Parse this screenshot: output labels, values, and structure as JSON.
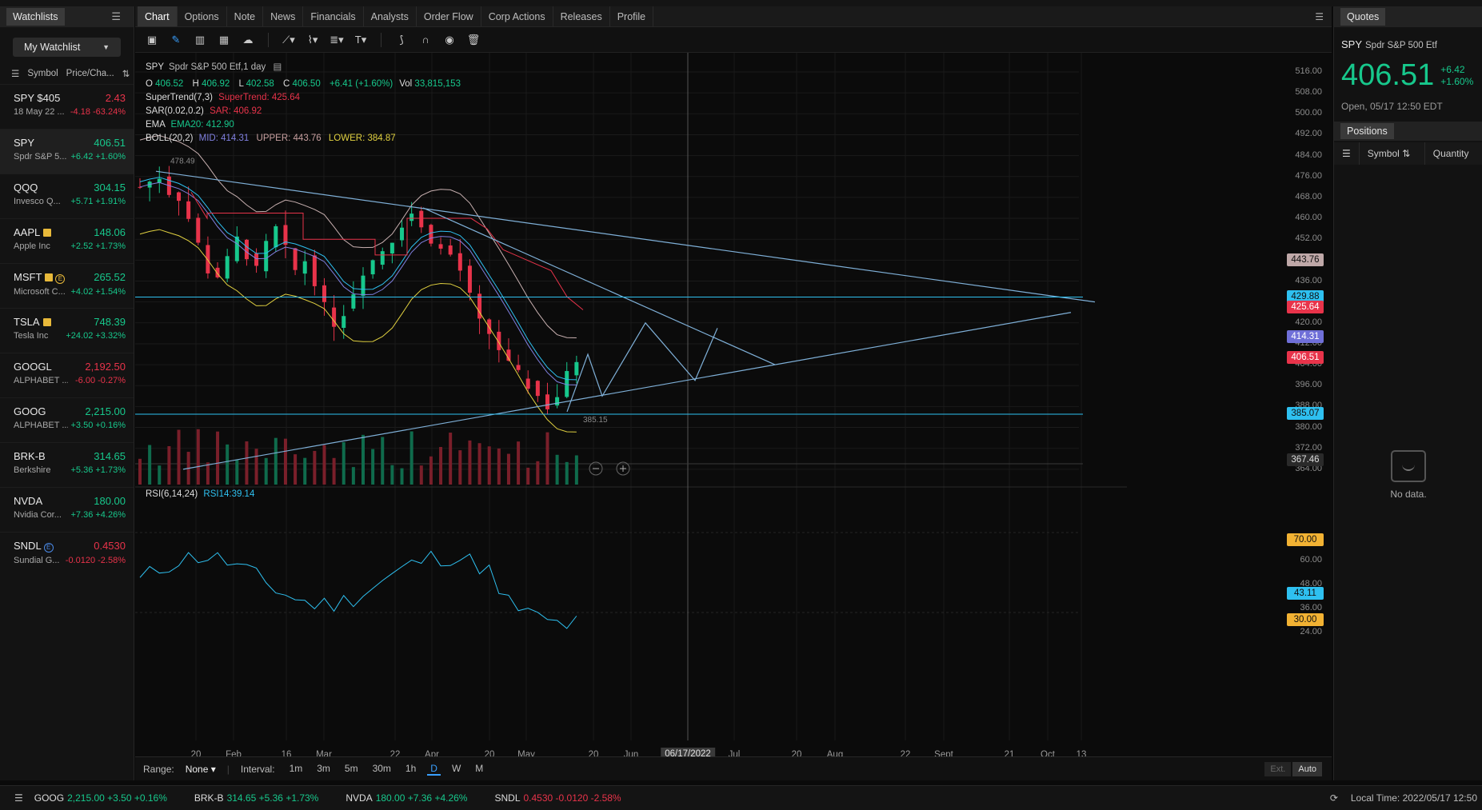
{
  "left_panel": {
    "tab_label": "Watchlists",
    "watchlist_name": "My Watchlist",
    "col_symbol": "Symbol",
    "col_price": "Price/Cha...",
    "items": [
      {
        "symbol": "SPY $405",
        "price": "2.43",
        "name": "18 May 22 ...",
        "change": "-4.18 -63.24%",
        "dir": "down",
        "badge": ""
      },
      {
        "symbol": "SPY",
        "price": "406.51",
        "name": "Spdr S&P 5...",
        "change": "+6.42 +1.60%",
        "dir": "up",
        "badge": ""
      },
      {
        "symbol": "QQQ",
        "price": "304.15",
        "name": "Invesco Q...",
        "change": "+5.71 +1.91%",
        "dir": "up",
        "badge": ""
      },
      {
        "symbol": "AAPL",
        "price": "148.06",
        "name": "Apple Inc",
        "change": "+2.52 +1.73%",
        "dir": "up",
        "badge": "sq"
      },
      {
        "symbol": "MSFT",
        "price": "265.52",
        "name": "Microsoft C...",
        "change": "+4.02 +1.54%",
        "dir": "up",
        "badge": "sq-e"
      },
      {
        "symbol": "TSLA",
        "price": "748.39",
        "name": "Tesla Inc",
        "change": "+24.02 +3.32%",
        "dir": "up",
        "badge": "sq"
      },
      {
        "symbol": "GOOGL",
        "price": "2,192.50",
        "name": "ALPHABET ...",
        "change": "-6.00 -0.27%",
        "dir": "down",
        "badge": ""
      },
      {
        "symbol": "GOOG",
        "price": "2,215.00",
        "name": "ALPHABET ...",
        "change": "+3.50 +0.16%",
        "dir": "up",
        "badge": ""
      },
      {
        "symbol": "BRK-B",
        "price": "314.65",
        "name": "Berkshire",
        "change": "+5.36 +1.73%",
        "dir": "up",
        "badge": ""
      },
      {
        "symbol": "NVDA",
        "price": "180.00",
        "name": "Nvidia Cor...",
        "change": "+7.36 +4.26%",
        "dir": "up",
        "badge": ""
      },
      {
        "symbol": "SNDL",
        "price": "0.4530",
        "name": "Sundial G...",
        "change": "-0.0120 -2.58%",
        "dir": "down",
        "badge": "e"
      }
    ]
  },
  "tabs": [
    "Chart",
    "Options",
    "Note",
    "News",
    "Financials",
    "Analysts",
    "Order Flow",
    "Corp Actions",
    "Releases",
    "Profile"
  ],
  "toolbar_icons": [
    "image-icon",
    "pencil-icon",
    "candlestick-icon",
    "grid-icon",
    "cloud-icon",
    "line-tool-icon",
    "node-tool-icon",
    "fib-tool-icon",
    "text-tool-icon",
    "brush-icon",
    "magnet-icon",
    "eye-icon",
    "trash-icon"
  ],
  "legend": {
    "symbol": "SPY",
    "name": "Spdr S&P 500 Etf,1 day",
    "o_label": "O",
    "o": "406.52",
    "h_label": "H",
    "h": "406.92",
    "l_label": "L",
    "l": "402.58",
    "c_label": "C",
    "c": "406.50",
    "chg": "+6.41 (+1.60%)",
    "vol_label": "Vol",
    "vol": "33,815,153",
    "supertrend_label": "SuperTrend(7,3)",
    "supertrend": "SuperTrend: 425.64",
    "sar_label": "SAR(0.02,0.2)",
    "sar": "SAR: 406.92",
    "ema_label": "EMA",
    "ema": "EMA20: 412.90",
    "boll_label": "BOLL(20,2)",
    "boll_mid": "MID: 414.31",
    "boll_upper": "UPPER: 443.76",
    "boll_lower": "LOWER: 384.87",
    "rsi_label": "RSI(6,14,24)",
    "rsi": "RSI14:39.14"
  },
  "chart_data": {
    "type": "candlestick",
    "y_ticks": [
      "516.00",
      "508.00",
      "500.00",
      "492.00",
      "484.00",
      "476.00",
      "468.00",
      "460.00",
      "452.00",
      "444.00",
      "436.00",
      "428.00",
      "420.00",
      "412.00",
      "404.00",
      "396.00",
      "388.00",
      "380.00",
      "372.00",
      "364.00"
    ],
    "y_tags": [
      {
        "value": "443.76",
        "bg": "#bfa8a8",
        "fg": "#111"
      },
      {
        "value": "429.88",
        "bg": "#2ec0f0",
        "fg": "#111"
      },
      {
        "value": "425.64",
        "bg": "#e8334a",
        "fg": "#fff"
      },
      {
        "value": "414.31",
        "bg": "#6f6fd8",
        "fg": "#fff"
      },
      {
        "value": "406.51",
        "bg": "#e8334a",
        "fg": "#fff"
      },
      {
        "value": "385.07",
        "bg": "#2ec0f0",
        "fg": "#111"
      },
      {
        "value": "367.46",
        "bg": "#2a2a2a",
        "fg": "#ddd"
      }
    ],
    "high_label": "478.49",
    "low_label": "385.15",
    "rsi_ticks": [
      "70.00",
      "60.00",
      "48.00",
      "36.00",
      "30.00",
      "24.00"
    ],
    "rsi_tag_70": "70.00",
    "rsi_tag_30": "30.00",
    "rsi_tag_current": "43.11",
    "x_labels": [
      "20",
      "Feb",
      "16",
      "Mar",
      "22",
      "Apr",
      "20",
      "May",
      "20",
      "Jun",
      "Jul",
      "20",
      "Aug",
      "22",
      "Sept",
      "21",
      "Oct",
      "13"
    ],
    "cursor_date": "06/17/2022"
  },
  "bottombar": {
    "range_label": "Range:",
    "range_value": "None",
    "interval_label": "Interval:",
    "intervals": [
      "1m",
      "3m",
      "5m",
      "30m",
      "1h",
      "D",
      "W",
      "M"
    ],
    "active_interval": "D",
    "ext": "Ext.",
    "auto": "Auto"
  },
  "quotes": {
    "tab_label": "Quotes",
    "symbol": "SPY",
    "name": "Spdr S&P 500 Etf",
    "price": "406.51",
    "change": "+6.42",
    "change_pct": "+1.60%",
    "status": "Open, 05/17 12:50 EDT",
    "positions_label": "Positions",
    "col_symbol": "Symbol",
    "col_qty": "Quantity",
    "no_data": "No data."
  },
  "footer": {
    "tickers": [
      {
        "symbol": "GOOG",
        "value": "2,215.00 +3.50 +0.16%",
        "dir": "up"
      },
      {
        "symbol": "BRK-B",
        "value": "314.65 +5.36 +1.73%",
        "dir": "up"
      },
      {
        "symbol": "NVDA",
        "value": "180.00 +7.36 +4.26%",
        "dir": "up"
      },
      {
        "symbol": "SNDL",
        "value": "0.4530 -0.0120 -2.58%",
        "dir": "down"
      }
    ],
    "local_time": "Local Time: 2022/05/17 12:50"
  }
}
